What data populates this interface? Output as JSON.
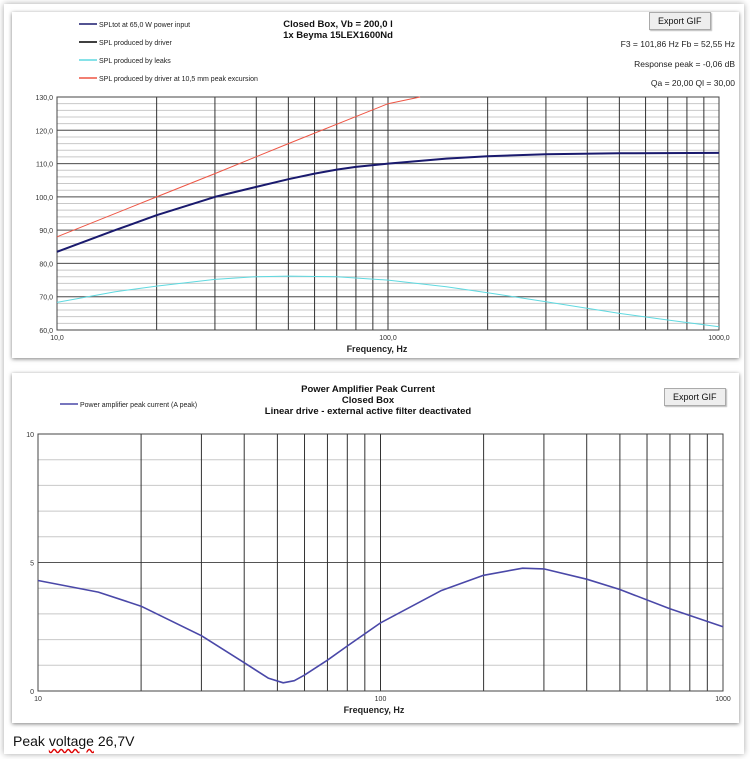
{
  "caption": {
    "prefix": "Peak",
    "word": "voltage",
    "value": "26,7V"
  },
  "chart_data": [
    {
      "type": "line",
      "title": [
        "Closed Box, Vb = 200,0 l",
        "1x Beyma 15LEX1600Nd"
      ],
      "export_label": "Export GIF",
      "info": [
        "F3 = 101,86 Hz  Fb = 52,55 Hz",
        "Response peak = -0,06 dB",
        "Qa = 20,00  Ql = 30,00"
      ],
      "xlabel": "Frequency, Hz",
      "xscale": "log",
      "xlim": [
        10,
        1000
      ],
      "xticks": [
        "10,0",
        "100,0",
        "1000,0"
      ],
      "ylim": [
        60,
        130
      ],
      "yticks": [
        "60,0",
        "70,0",
        "80,0",
        "90,0",
        "100,0",
        "110,0",
        "120,0",
        "130,0"
      ],
      "legend_position": "top-left",
      "series": [
        {
          "name": "SPLtot at 65,0 W power input",
          "color": "#1a1a6e",
          "x": [
            10,
            15,
            20,
            30,
            40,
            50,
            60,
            70,
            80,
            100,
            150,
            200,
            300,
            500,
            1000
          ],
          "y": [
            83.5,
            90,
            94.5,
            100,
            103,
            105.3,
            107,
            108.2,
            109,
            110,
            111.5,
            112.2,
            112.8,
            113.1,
            113.2
          ]
        },
        {
          "name": "SPL produced by driver",
          "color": "#000000",
          "x": [
            10,
            15,
            20,
            30,
            40,
            50,
            60,
            70,
            80,
            100,
            150,
            200,
            300,
            500,
            1000
          ],
          "y": [
            83.5,
            90,
            94.5,
            100,
            103,
            105.3,
            107,
            108.2,
            109,
            110,
            111.5,
            112.2,
            112.8,
            113.1,
            113.2
          ]
        },
        {
          "name": "SPL produced by leaks",
          "color": "#5fd9e0",
          "x": [
            10,
            15,
            20,
            30,
            40,
            50,
            70,
            100,
            150,
            200,
            300,
            500,
            700,
            1000
          ],
          "y": [
            68.3,
            71.5,
            73.2,
            75.2,
            76,
            76.2,
            76,
            75,
            73,
            71.2,
            68.5,
            65,
            63,
            61
          ]
        },
        {
          "name": "SPL produced by driver at 10,5 mm peak excursion",
          "color": "#ee5544",
          "x": [
            10,
            20,
            30,
            50,
            100,
            125
          ],
          "y": [
            88,
            100,
            107,
            116,
            128,
            130
          ]
        }
      ]
    },
    {
      "type": "line",
      "title": [
        "Power Amplifier Peak Current",
        "Closed Box",
        "Linear drive - external active filter deactivated"
      ],
      "export_label": "Export GIF",
      "xlabel": "Frequency, Hz",
      "xscale": "log",
      "xlim": [
        10,
        1000
      ],
      "xticks": [
        "10",
        "100",
        "1000"
      ],
      "ylim": [
        0,
        10
      ],
      "yticks": [
        "0",
        "5",
        "10"
      ],
      "legend_position": "top-left",
      "series": [
        {
          "name": "Power amplifier peak current (A peak)",
          "color": "#4a48a8",
          "x": [
            10,
            15,
            20,
            30,
            40,
            47,
            52,
            56,
            60,
            70,
            80,
            100,
            150,
            200,
            260,
            300,
            400,
            500,
            700,
            1000
          ],
          "y": [
            4.3,
            3.85,
            3.3,
            2.15,
            1.1,
            0.5,
            0.32,
            0.4,
            0.62,
            1.2,
            1.75,
            2.65,
            3.9,
            4.5,
            4.78,
            4.75,
            4.35,
            3.95,
            3.2,
            2.5
          ]
        }
      ]
    }
  ]
}
